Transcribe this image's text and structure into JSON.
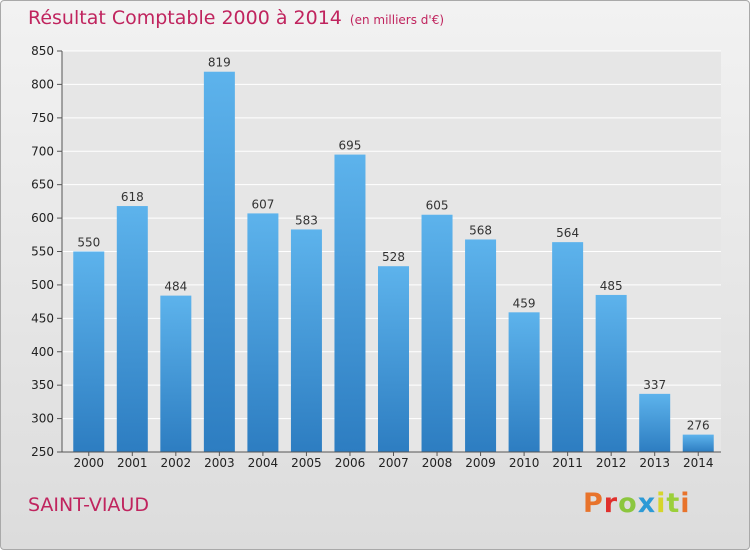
{
  "chart_data": {
    "type": "bar",
    "title": "Résultat Comptable 2000 à 2014",
    "subtitle": "(en milliers d'€)",
    "categories": [
      "2000",
      "2001",
      "2002",
      "2003",
      "2004",
      "2005",
      "2006",
      "2007",
      "2008",
      "2009",
      "2010",
      "2011",
      "2012",
      "2013",
      "2014"
    ],
    "values": [
      550,
      618,
      484,
      819,
      607,
      583,
      695,
      528,
      605,
      568,
      459,
      564,
      485,
      337,
      276
    ],
    "ylim": [
      250,
      850
    ],
    "yticks": [
      250,
      300,
      350,
      400,
      450,
      500,
      550,
      600,
      650,
      700,
      750,
      800,
      850
    ],
    "grid": true,
    "bar_color": "#5aaee6",
    "bar_color_dark": "#2f7fc2"
  },
  "location": "SAINT-VIAUD",
  "brand": "Proxiti",
  "brand_colors": [
    "#e8732b",
    "#e0302c",
    "#8cc63e",
    "#2d9ad6",
    "#d6d52b",
    "#9bcf3a",
    "#e8732b"
  ],
  "title_color": "#c0245e"
}
